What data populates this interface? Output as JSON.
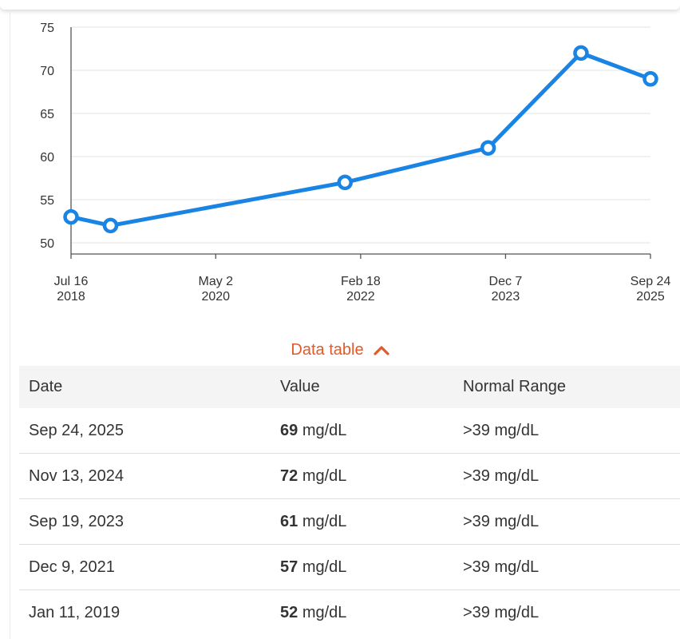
{
  "colors": {
    "series": "#1a84e5",
    "accent": "#e05a2b",
    "grid": "#e3e3e3",
    "axis": "#555555"
  },
  "chart_data": {
    "type": "line",
    "title": "",
    "xlabel": "",
    "ylabel": "",
    "ylim": [
      50,
      75
    ],
    "y_ticks": [
      50,
      55,
      60,
      65,
      70,
      75
    ],
    "grid": true,
    "x_ticks": [
      {
        "date": "2018-07-16",
        "line1": "Jul 16",
        "line2": "2018"
      },
      {
        "date": "2020-05-02",
        "line1": "May 2",
        "line2": "2020"
      },
      {
        "date": "2022-02-18",
        "line1": "Feb 18",
        "line2": "2022"
      },
      {
        "date": "2023-12-07",
        "line1": "Dec 7",
        "line2": "2023"
      },
      {
        "date": "2025-09-24",
        "line1": "Sep 24",
        "line2": "2025"
      }
    ],
    "series": [
      {
        "points": [
          {
            "x": "2018-07-16",
            "y": 53
          },
          {
            "x": "2019-01-11",
            "y": 52
          },
          {
            "x": "2021-12-09",
            "y": 57
          },
          {
            "x": "2023-09-19",
            "y": 61
          },
          {
            "x": "2024-11-13",
            "y": 72
          },
          {
            "x": "2025-09-24",
            "y": 69
          }
        ]
      }
    ]
  },
  "toggle": {
    "label": "Data table"
  },
  "table": {
    "headers": [
      "Date",
      "Value",
      "Normal Range"
    ],
    "rows": [
      {
        "date": "Sep 24, 2025",
        "value": "69",
        "unit": "mg/dL",
        "range": ">39 mg/dL"
      },
      {
        "date": "Nov 13, 2024",
        "value": "72",
        "unit": "mg/dL",
        "range": ">39 mg/dL"
      },
      {
        "date": "Sep 19, 2023",
        "value": "61",
        "unit": "mg/dL",
        "range": ">39 mg/dL"
      },
      {
        "date": "Dec 9, 2021",
        "value": "57",
        "unit": "mg/dL",
        "range": ">39 mg/dL"
      },
      {
        "date": "Jan 11, 2019",
        "value": "52",
        "unit": "mg/dL",
        "range": ">39 mg/dL"
      }
    ]
  }
}
